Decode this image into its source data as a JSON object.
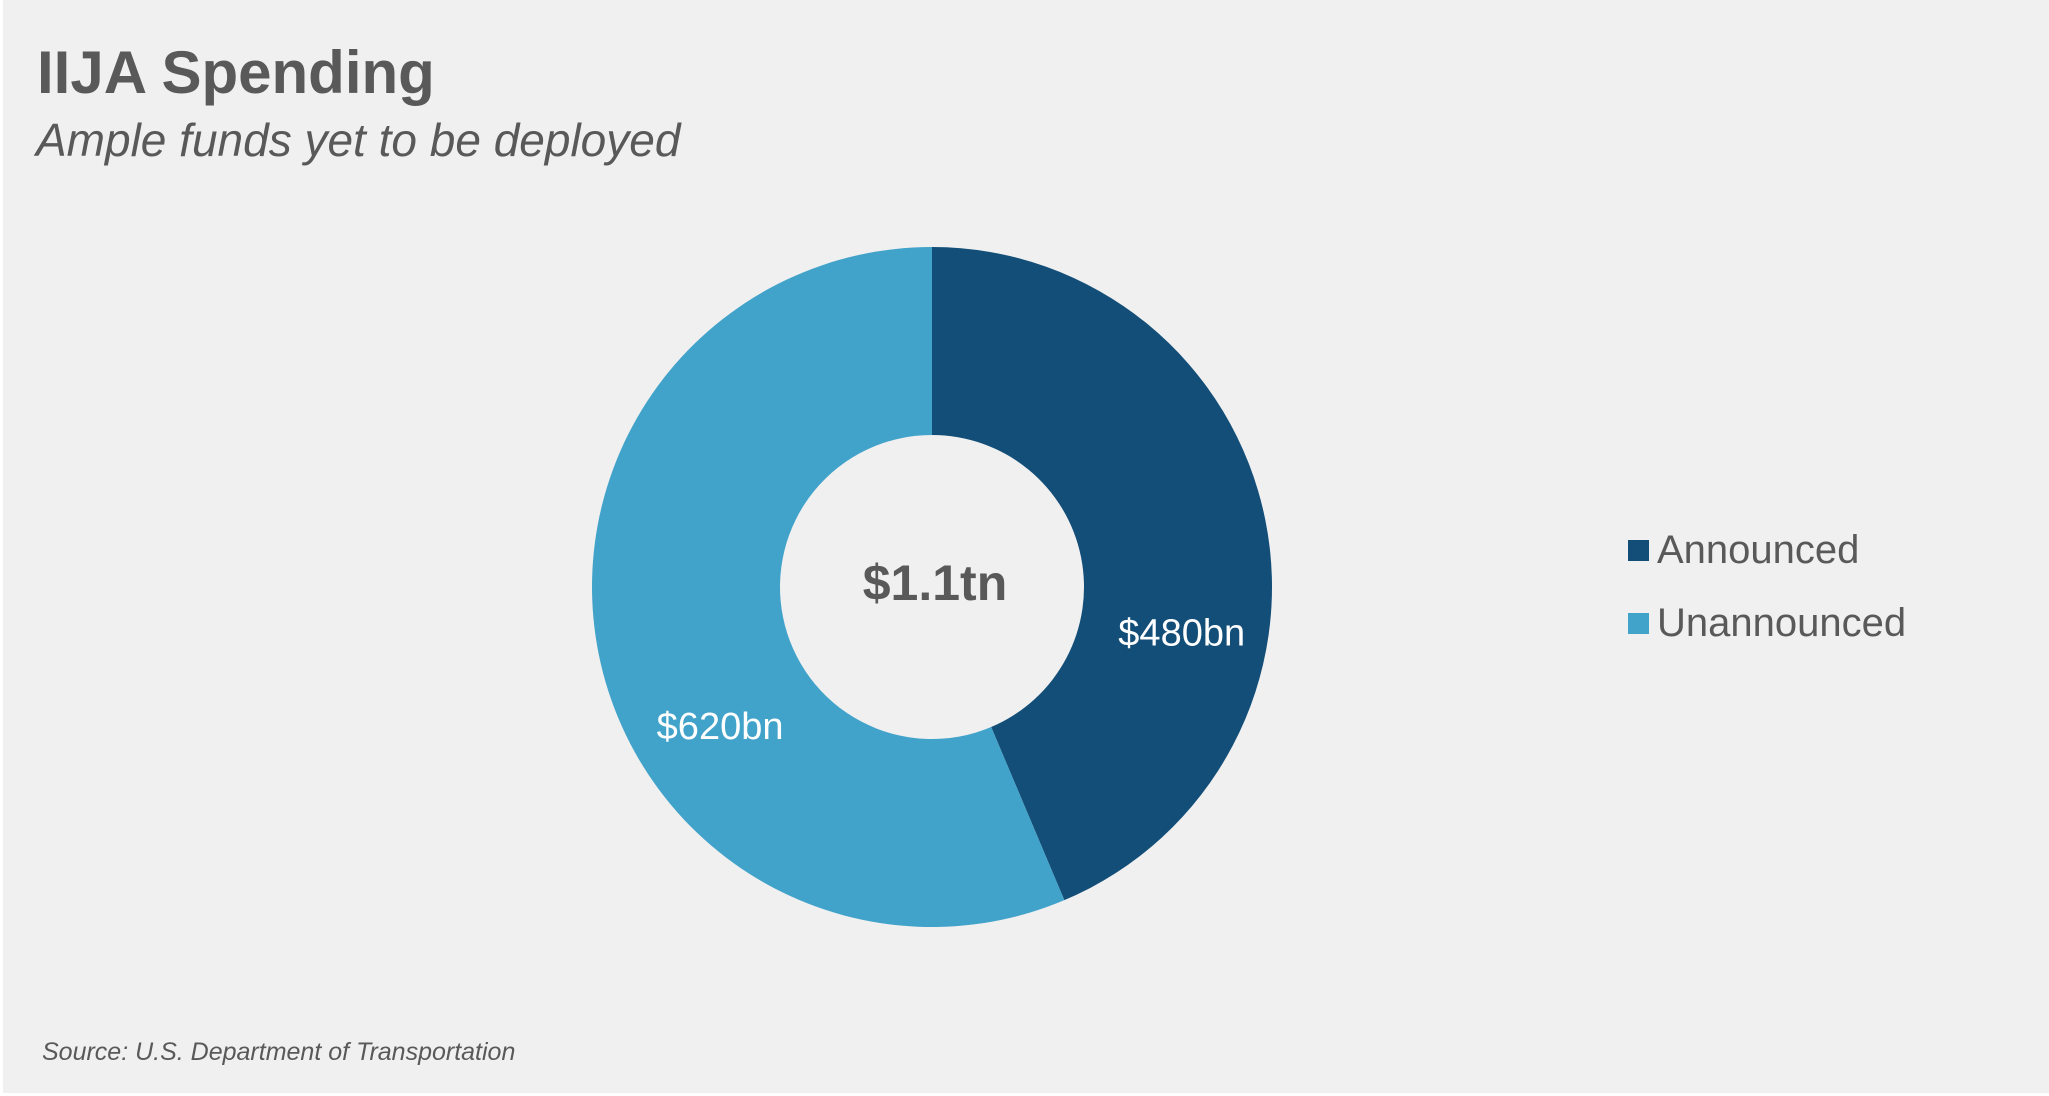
{
  "header": {
    "title": "IIJA Spending",
    "subtitle": "Ample funds yet to be deployed"
  },
  "footer": {
    "source": "Source: U.S. Department of Transportation"
  },
  "chart_data": {
    "type": "pie",
    "donut": true,
    "title": "IIJA Spending",
    "subtitle": "Ample funds yet to be deployed",
    "center_label": "$1.1tn",
    "start_angle_deg": 0,
    "direction": "clockwise",
    "legend_position": "right",
    "categories": [
      "Announced",
      "Unannounced"
    ],
    "values": [
      480,
      620
    ],
    "unit": "bn USD",
    "data_labels": [
      "$480bn",
      "$620bn"
    ],
    "colors": [
      "#134e78",
      "#42a3ca"
    ]
  }
}
